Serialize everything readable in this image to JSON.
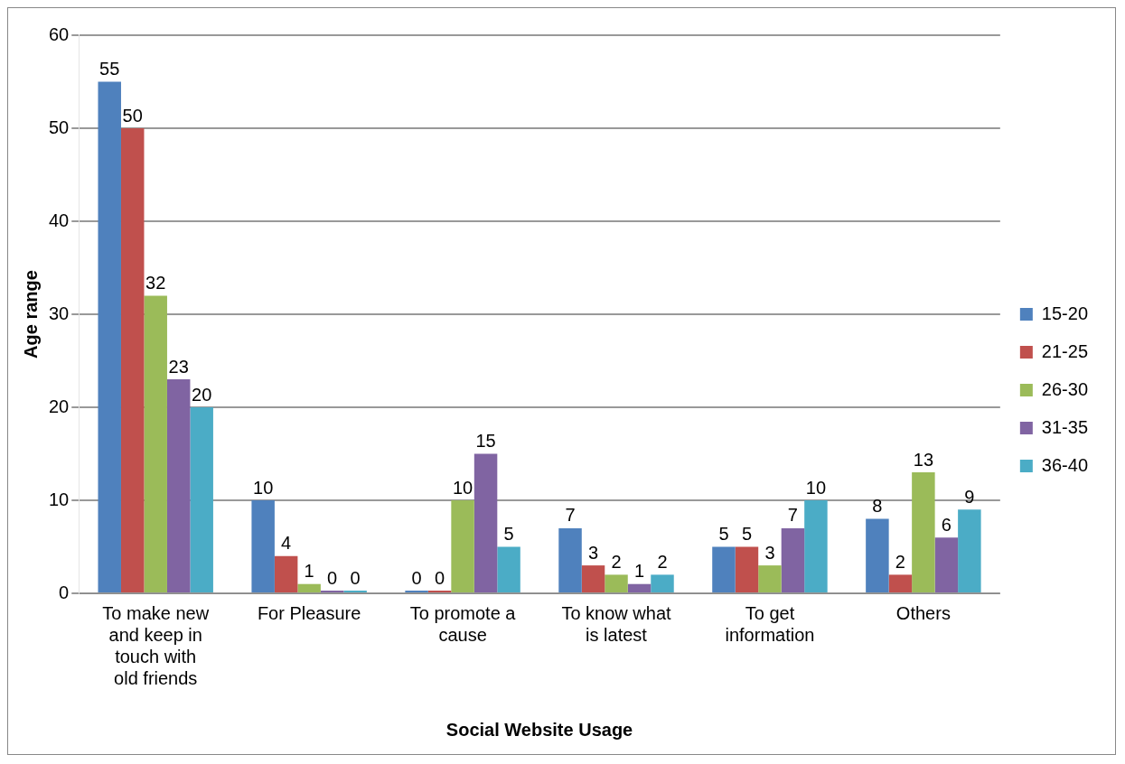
{
  "chart_data": {
    "type": "bar",
    "xlabel": "Social Website Usage",
    "ylabel": "Age range",
    "categories": [
      "To make new and keep in touch with old friends",
      "For Pleasure",
      "To promote a cause",
      "To know what is latest",
      "To get information",
      "Others"
    ],
    "series": [
      {
        "name": "15-20",
        "color": "#4f81bd",
        "values": [
          55,
          10,
          0,
          7,
          5,
          8
        ]
      },
      {
        "name": "21-25",
        "color": "#c0504d",
        "values": [
          50,
          4,
          0,
          3,
          5,
          2
        ]
      },
      {
        "name": "26-30",
        "color": "#9bbb59",
        "values": [
          32,
          1,
          10,
          2,
          3,
          13
        ]
      },
      {
        "name": "31-35",
        "color": "#8064a2",
        "values": [
          23,
          0,
          15,
          1,
          7,
          6
        ]
      },
      {
        "name": "36-40",
        "color": "#4bacc6",
        "values": [
          20,
          0,
          5,
          2,
          10,
          9
        ]
      }
    ],
    "ylim": [
      0,
      60
    ],
    "yticks": [
      0,
      10,
      20,
      30,
      40,
      50,
      60
    ],
    "grid": "y",
    "legend": "right",
    "data_labels": true
  }
}
